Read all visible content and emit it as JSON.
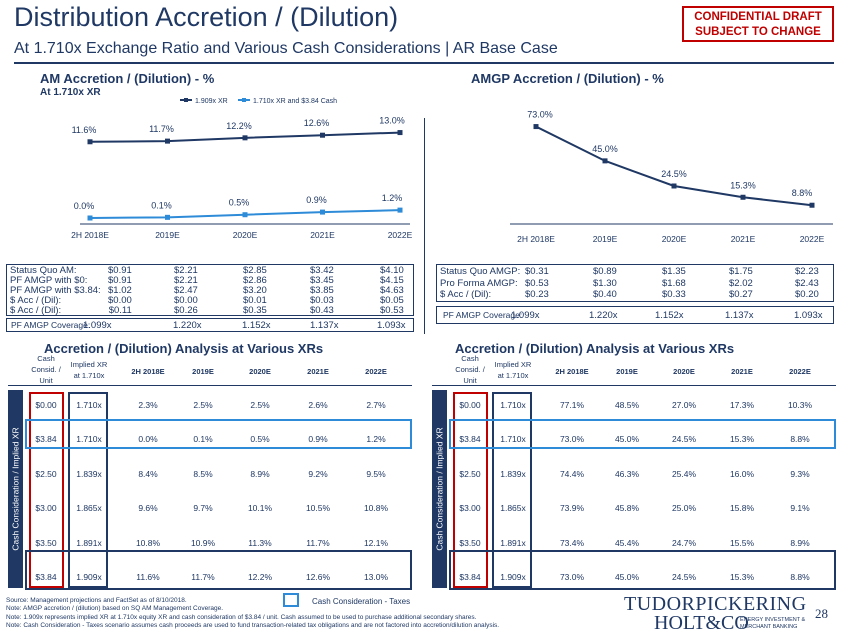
{
  "header": {
    "title": "Distribution Accretion / (Dilution)",
    "subtitle": "At 1.710x Exchange Ratio and Various Cash Considerations | AR Base Case",
    "confidential_line1": "CONFIDENTIAL DRAFT",
    "confidential_line2": "SUBJECT TO CHANGE"
  },
  "left_chart_title": "AM Accretion / (Dilution) - %",
  "left_chart_subtitle": "At 1.710x XR",
  "right_chart_title": "AMGP Accretion / (Dilution) - %",
  "chart_data": [
    {
      "type": "line",
      "categories": [
        "2H 2018E",
        "2019E",
        "2020E",
        "2021E",
        "2022E"
      ],
      "series": [
        {
          "name": "1.909x XR",
          "values": [
            11.6,
            11.7,
            12.2,
            12.6,
            13.0
          ],
          "labels": [
            "11.6%",
            "11.7%",
            "12.2%",
            "12.6%",
            "13.0%"
          ]
        },
        {
          "name": "1.710x XR and $3.84 Cash",
          "values": [
            0.0,
            0.1,
            0.5,
            0.9,
            1.2
          ],
          "labels": [
            "0.0%",
            "0.1%",
            "0.5%",
            "0.9%",
            "1.2%"
          ]
        }
      ],
      "ylim": [
        0,
        14
      ],
      "colors": [
        "#1f3864",
        "#2e8bd8"
      ]
    },
    {
      "type": "line",
      "categories": [
        "2H 2018E",
        "2019E",
        "2020E",
        "2021E",
        "2022E"
      ],
      "series": [
        {
          "values": [
            73.0,
            45.0,
            24.5,
            15.3,
            8.8
          ],
          "labels": [
            "73.0%",
            "45.0%",
            "24.5%",
            "15.3%",
            "8.8%"
          ]
        }
      ],
      "ylim": [
        0,
        80
      ],
      "colors": [
        "#1f3864"
      ]
    }
  ],
  "am_summary": {
    "labels": [
      "Status Quo AM:",
      "PF AMGP with $0:",
      "PF AMGP with $3.84:",
      "$ Acc / (Dil):",
      "$ Acc / (Dil):"
    ],
    "columns": [
      [
        "$0.91",
        "$0.91",
        "$1.02",
        "$0.00",
        "$0.11"
      ],
      [
        "$2.21",
        "$2.21",
        "$2.47",
        "$0.00",
        "$0.26"
      ],
      [
        "$2.85",
        "$2.86",
        "$3.20",
        "$0.01",
        "$0.35"
      ],
      [
        "$3.42",
        "$3.45",
        "$3.85",
        "$0.03",
        "$0.43"
      ],
      [
        "$4.10",
        "$4.15",
        "$4.63",
        "$0.05",
        "$0.53"
      ]
    ],
    "coverage_label": "PF AMGP Coverage:",
    "coverage": [
      "1.099x",
      "1.220x",
      "1.152x",
      "1.137x",
      "1.093x"
    ]
  },
  "amgp_summary": {
    "labels": [
      "Status Quo AMGP:",
      "Pro Forma AMGP:",
      "$ Acc / (Dil):"
    ],
    "columns": [
      [
        "$0.31",
        "$0.53",
        "$0.23"
      ],
      [
        "$0.89",
        "$1.30",
        "$0.40"
      ],
      [
        "$1.35",
        "$1.68",
        "$0.33"
      ],
      [
        "$1.75",
        "$2.02",
        "$0.27"
      ],
      [
        "$2.23",
        "$2.43",
        "$0.20"
      ]
    ],
    "coverage_label": "PF AMGP Coverage:",
    "coverage": [
      "1.099x",
      "1.220x",
      "1.152x",
      "1.137x",
      "1.093x"
    ]
  },
  "analysis_title": "Accretion / (Dilution) Analysis at Various XRs",
  "table_headers": {
    "cash_line1": "Cash",
    "cash_line2": "Consid. /",
    "cash_line3": "Unit",
    "xr_line1": "Implied XR",
    "xr_line2": "at 1.710x",
    "years": [
      "2H 2018E",
      "2019E",
      "2020E",
      "2021E",
      "2022E"
    ]
  },
  "sidebar_label": "Cash Consideration / Implied XR",
  "am_table": [
    [
      "$0.00",
      "1.710x",
      "2.3%",
      "2.5%",
      "2.5%",
      "2.6%",
      "2.7%"
    ],
    [
      "$3.84",
      "1.710x",
      "0.0%",
      "0.1%",
      "0.5%",
      "0.9%",
      "1.2%"
    ],
    [
      "$2.50",
      "1.839x",
      "8.4%",
      "8.5%",
      "8.9%",
      "9.2%",
      "9.5%"
    ],
    [
      "$3.00",
      "1.865x",
      "9.6%",
      "9.7%",
      "10.1%",
      "10.5%",
      "10.8%"
    ],
    [
      "$3.50",
      "1.891x",
      "10.8%",
      "10.9%",
      "11.3%",
      "11.7%",
      "12.1%"
    ],
    [
      "$3.84",
      "1.909x",
      "11.6%",
      "11.7%",
      "12.2%",
      "12.6%",
      "13.0%"
    ]
  ],
  "amgp_table": [
    [
      "$0.00",
      "1.710x",
      "77.1%",
      "48.5%",
      "27.0%",
      "17.3%",
      "10.3%"
    ],
    [
      "$3.84",
      "1.710x",
      "73.0%",
      "45.0%",
      "24.5%",
      "15.3%",
      "8.8%"
    ],
    [
      "$2.50",
      "1.839x",
      "74.4%",
      "46.3%",
      "25.4%",
      "16.0%",
      "9.3%"
    ],
    [
      "$3.00",
      "1.865x",
      "73.9%",
      "45.8%",
      "25.0%",
      "15.8%",
      "9.1%"
    ],
    [
      "$3.50",
      "1.891x",
      "73.4%",
      "45.4%",
      "24.7%",
      "15.5%",
      "8.9%"
    ],
    [
      "$3.84",
      "1.909x",
      "73.0%",
      "45.0%",
      "24.5%",
      "15.3%",
      "8.8%"
    ]
  ],
  "legend_box_label": "Cash Consideration - Taxes",
  "footnotes": [
    "Source: Management projections and FactSet as of 8/10/2018.",
    "Note: AMGP accretion / (dilution) based on SQ AM Management Coverage.",
    "Note: 1.909x represents implied XR at 1.710x equity XR and cash consideration of $3.84 / unit. Cash assumed to be used to purchase additional secondary shares.",
    "Note: Cash Consideration - Taxes scenario assumes cash proceeds are used to fund transaction-related tax obligations and are not factored into accretion/dilution analysis."
  ],
  "logo": {
    "line1": "TUDORPICKERING",
    "line2": "HOLT&CO",
    "sub1": "ENERGY INVESTMENT &",
    "sub2": "MERCHANT BANKING"
  },
  "page_number": "28",
  "colors": {
    "navy": "#1f3864",
    "blue": "#2e8bd8",
    "red": "#c00000"
  }
}
